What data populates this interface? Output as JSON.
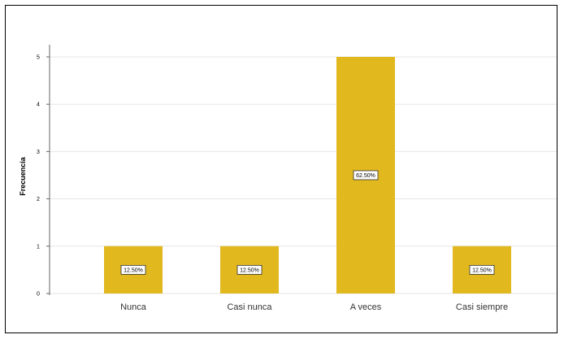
{
  "chart_data": {
    "type": "bar",
    "categories": [
      "Nunca",
      "Casi nunca",
      "A veces",
      "Casi siempre"
    ],
    "values": [
      1,
      1,
      5,
      1
    ],
    "data_labels": [
      "12.50%",
      "12.50%",
      "62.50%",
      "12.50%"
    ],
    "title": "",
    "xlabel": "",
    "ylabel": "Frecuencia",
    "ylim": [
      0,
      5
    ],
    "yticks": [
      "0",
      "1",
      "2",
      "3",
      "4",
      "5"
    ],
    "grid": true,
    "legend": "none",
    "bar_color": "#e1b81e",
    "grid_color": "#e6e6e6",
    "label_box_color": "#ffffff"
  }
}
